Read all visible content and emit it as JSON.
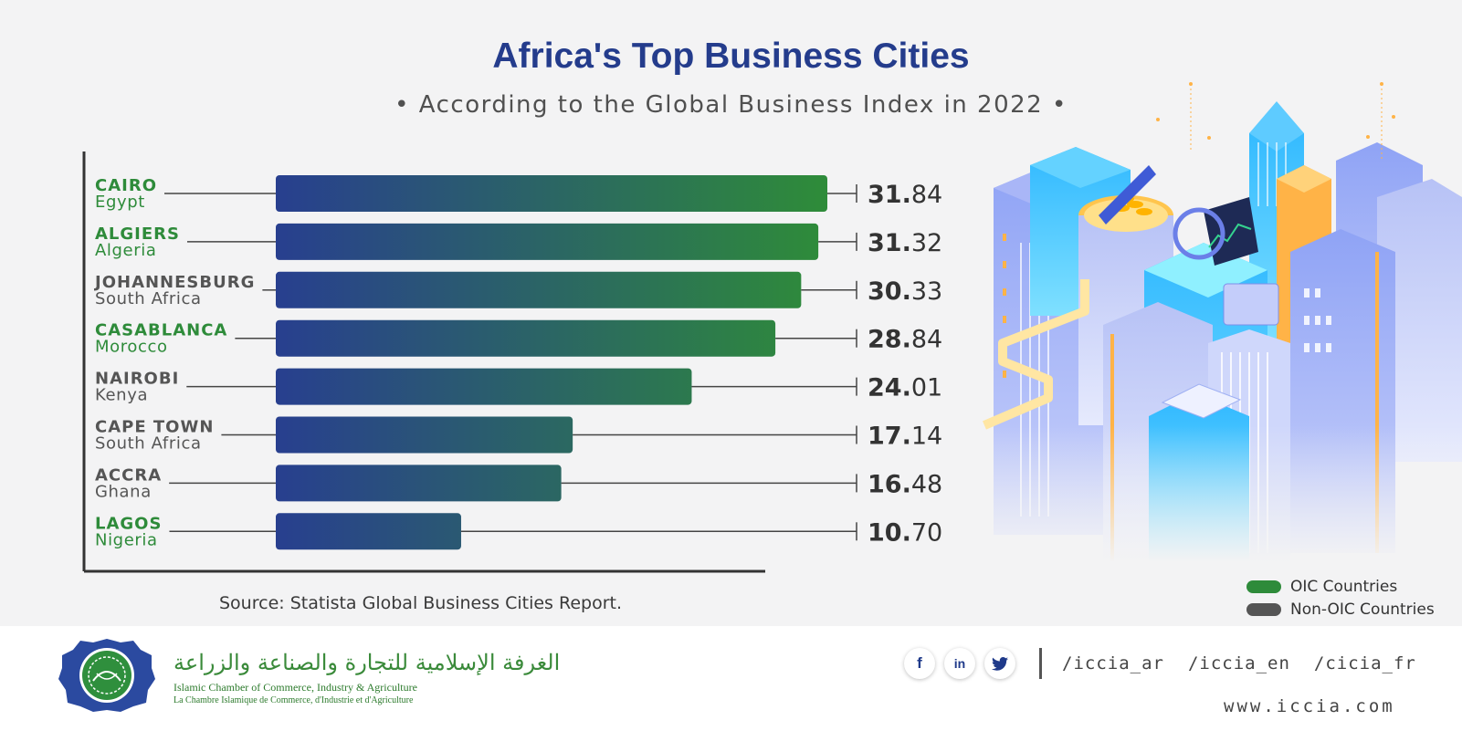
{
  "header": {
    "title": "Africa's Top Business Cities",
    "subtitle": "• According to the Global Business Index in 2022 •"
  },
  "colors": {
    "oic": "#2e8b3a",
    "non_oic": "#555555",
    "bar_start": "#283f8f",
    "title": "#243c8c"
  },
  "chart_data": {
    "type": "bar",
    "orientation": "horizontal",
    "title": "Africa's Top Business Cities",
    "subtitle": "According to the Global Business Index in 2022",
    "xlim": [
      0,
      33
    ],
    "categories": [
      {
        "city": "CAIRO",
        "country": "Egypt",
        "value": 31.84,
        "int": "31.",
        "dec": "84",
        "oic": true
      },
      {
        "city": "ALGIERS",
        "country": "Algeria",
        "value": 31.32,
        "int": "31.",
        "dec": "32",
        "oic": true
      },
      {
        "city": "JOHANNESBURG",
        "country": "South Africa",
        "value": 30.33,
        "int": "30.",
        "dec": "33",
        "oic": false
      },
      {
        "city": "CASABLANCA",
        "country": "Morocco",
        "value": 28.84,
        "int": "28.",
        "dec": "84",
        "oic": true
      },
      {
        "city": "NAIROBI",
        "country": "Kenya",
        "value": 24.01,
        "int": "24.",
        "dec": "01",
        "oic": false
      },
      {
        "city": "CAPE TOWN",
        "country": "South Africa",
        "value": 17.14,
        "int": "17.",
        "dec": "14",
        "oic": false
      },
      {
        "city": "ACCRA",
        "country": "Ghana",
        "value": 16.48,
        "int": "16.",
        "dec": "48",
        "oic": false
      },
      {
        "city": "LAGOS",
        "country": "Nigeria",
        "value": 10.7,
        "int": "10.",
        "dec": "70",
        "oic": true
      }
    ],
    "legend": [
      {
        "label": "OIC Countries",
        "color": "#2e8b3a"
      },
      {
        "label": "Non-OIC Countries",
        "color": "#555555"
      }
    ],
    "legend_position": "bottom-right"
  },
  "source": "Source: Statista Global Business Cities Report.",
  "footer": {
    "org_name_ar": "الغرفة الإسلامية للتجارة والصناعة والزراعة",
    "org_name_en": "Islamic Chamber of Commerce, Industry & Agriculture",
    "org_name_fr": "La Chambre Islamique de Commerce, d'Industrie et d'Agriculture",
    "social_icons": [
      "facebook-icon",
      "linkedin-icon",
      "twitter-icon"
    ],
    "facebook_glyph": "f",
    "linkedin_glyph": "in",
    "handles": [
      "/iccia_ar",
      "/iccia_en",
      "/cicia_fr"
    ],
    "website": "www.iccia.com"
  }
}
